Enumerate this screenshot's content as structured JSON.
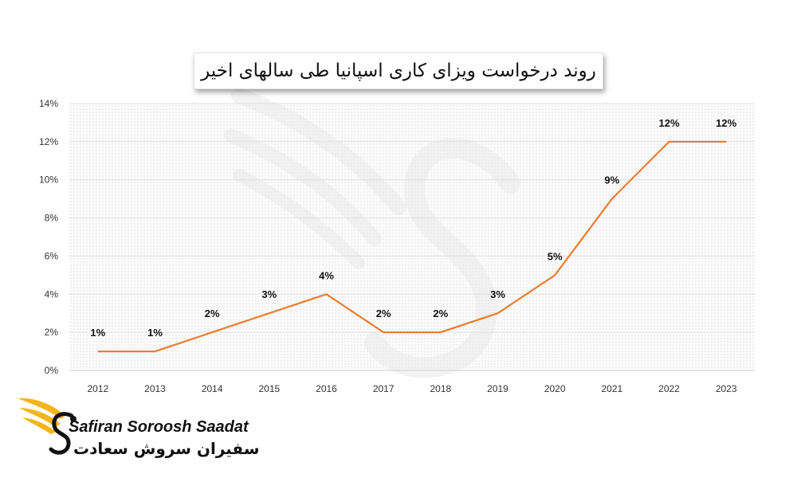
{
  "chart_data": {
    "type": "line",
    "title": "روند درخواست ویزای کاری اسپانیا طی سالهای اخیر",
    "categories": [
      "2012",
      "2013",
      "2014",
      "2015",
      "2016",
      "2017",
      "2018",
      "2019",
      "2020",
      "2021",
      "2022",
      "2023"
    ],
    "values": [
      1,
      1,
      2,
      3,
      4,
      2,
      2,
      3,
      5,
      9,
      12,
      12
    ],
    "data_labels": [
      "1%",
      "1%",
      "2%",
      "3%",
      "4%",
      "2%",
      "2%",
      "3%",
      "5%",
      "9%",
      "12%",
      "12%"
    ],
    "y_ticks": [
      "0%",
      "2%",
      "4%",
      "6%",
      "8%",
      "10%",
      "12%",
      "14%"
    ],
    "ylim": [
      0,
      14
    ],
    "grid": true,
    "line_color": "#ED7D31"
  },
  "brand": {
    "name_en": "Safiran Soroosh Saadat",
    "name_fa": "سفیران سروش سعادت",
    "logo_icon": "eagle-wing-s-logo",
    "logo_color": "#F2B61B"
  }
}
